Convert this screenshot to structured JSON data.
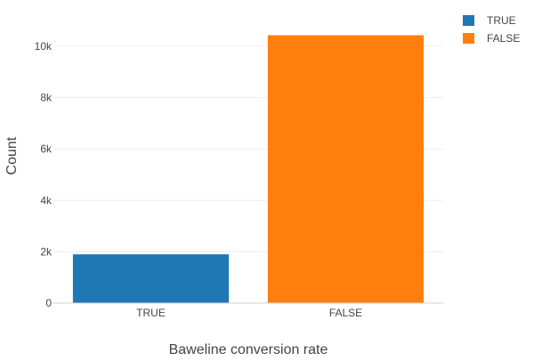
{
  "chart_data": {
    "type": "bar",
    "categories": [
      "TRUE",
      "FALSE"
    ],
    "values": [
      1900,
      10430
    ],
    "colors": [
      "#1f77b4",
      "#ff7f0e"
    ],
    "xlabel": "Baweline conversion rate",
    "ylabel": "Count",
    "ylim": [
      0,
      10900
    ],
    "yticks": [
      0,
      2000,
      4000,
      6000,
      8000,
      10000
    ],
    "ytick_labels": [
      "0",
      "2k",
      "4k",
      "6k",
      "8k",
      "10k"
    ],
    "grid": true,
    "legend": {
      "position": "top-right",
      "entries": [
        {
          "label": "TRUE",
          "color": "#1f77b4"
        },
        {
          "label": "FALSE",
          "color": "#ff7f0e"
        }
      ]
    }
  }
}
